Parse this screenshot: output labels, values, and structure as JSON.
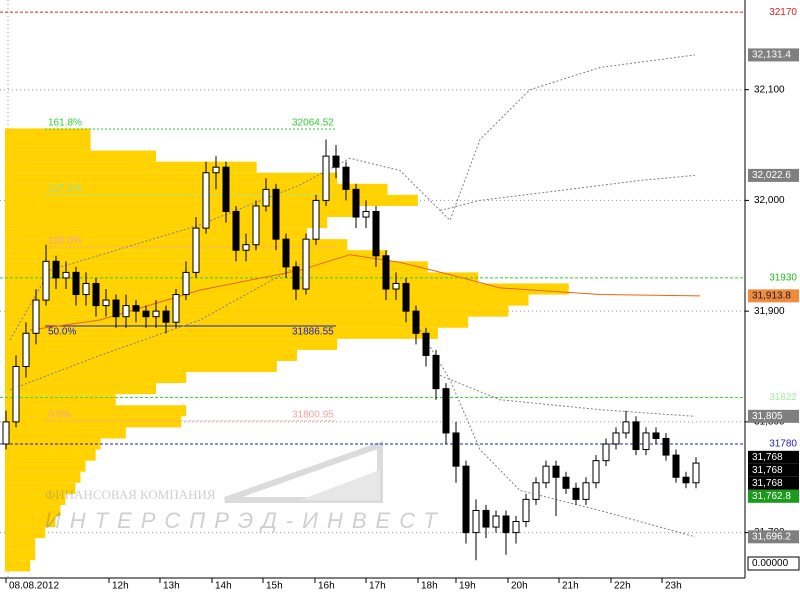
{
  "chart_data": {
    "type": "candlestick",
    "xlim": [
      -0.6,
      73.9
    ],
    "xticks": [
      {
        "value": 0,
        "label": "08.08.2012"
      },
      {
        "value": 10.3,
        "label": "12h"
      },
      {
        "value": 15.4,
        "label": "13h"
      },
      {
        "value": 20.6,
        "label": "14h"
      },
      {
        "value": 25.7,
        "label": "15h"
      },
      {
        "value": 30.9,
        "label": "16h"
      },
      {
        "value": 36,
        "label": "17h"
      },
      {
        "value": 41.2,
        "label": "18h"
      },
      {
        "value": 45,
        "label": "19h"
      },
      {
        "value": 50.2,
        "label": "20h"
      },
      {
        "value": 55.3,
        "label": "21h"
      },
      {
        "value": 60.5,
        "label": "22h"
      },
      {
        "value": 65.6,
        "label": "23h"
      }
    ],
    "ylim": [
      31659,
      32181
    ],
    "yticks": [
      {
        "value": 32100,
        "label": "32,100"
      },
      {
        "value": 32000,
        "label": "32,000"
      },
      {
        "value": 31900,
        "label": "31,900"
      },
      {
        "value": 31800,
        "label": "31,800"
      },
      {
        "value": 31700,
        "label": "31,700"
      }
    ],
    "grid": true,
    "up_color": "#ffffff",
    "down_color": "#000000",
    "open": [
      31780,
      31800,
      31850,
      31880,
      31910,
      31945,
      31930,
      31935,
      31915,
      31925,
      31905,
      31910,
      31895,
      31905,
      31900,
      31895,
      31900,
      31890,
      31915,
      31935,
      31975,
      32025,
      32030,
      31990,
      31955,
      31960,
      31995,
      32010,
      31965,
      31940,
      31920,
      31965,
      32000,
      32040,
      32030,
      32010,
      31985,
      31990,
      31950,
      31920,
      31925,
      31900,
      31880,
      31860,
      31830,
      31790,
      31760,
      31700,
      31720,
      31705,
      31715,
      31700,
      31710,
      31730,
      31745,
      31760,
      31750,
      31740,
      31730,
      31745,
      31765,
      31780,
      31790,
      31800,
      31775,
      31790,
      31785,
      31770,
      31750,
      31745
    ],
    "high": [
      31810,
      31860,
      31890,
      31920,
      31960,
      31950,
      31945,
      31940,
      31935,
      31930,
      31920,
      31915,
      31915,
      31910,
      31905,
      31910,
      31905,
      31920,
      31945,
      31985,
      32035,
      32040,
      32035,
      31995,
      31970,
      32000,
      32020,
      32015,
      31970,
      31945,
      31970,
      32005,
      32055,
      32050,
      32035,
      32015,
      32000,
      31995,
      31955,
      31935,
      31930,
      31905,
      31885,
      31865,
      31835,
      31800,
      31765,
      31730,
      31725,
      31720,
      31720,
      31715,
      31735,
      31750,
      31765,
      31765,
      31755,
      31745,
      31750,
      31770,
      31785,
      31795,
      31810,
      31805,
      31795,
      31795,
      31790,
      31775,
      31755,
      31768
    ],
    "low": [
      31775,
      31795,
      31840,
      31870,
      31905,
      31920,
      31920,
      31905,
      31905,
      31895,
      31895,
      31885,
      31885,
      31890,
      31885,
      31885,
      31880,
      31885,
      31910,
      31930,
      31970,
      32010,
      31980,
      31945,
      31945,
      31955,
      31990,
      31955,
      31930,
      31910,
      31915,
      31960,
      31995,
      32020,
      32000,
      31975,
      31975,
      31940,
      31910,
      31910,
      31890,
      31870,
      31850,
      31820,
      31780,
      31745,
      31690,
      31675,
      31695,
      31700,
      31680,
      31690,
      31705,
      31725,
      31740,
      31715,
      31735,
      31725,
      31725,
      31740,
      31760,
      31775,
      31785,
      31770,
      31770,
      31780,
      31765,
      31745,
      31740,
      31740
    ],
    "close": [
      31800,
      31850,
      31880,
      31910,
      31945,
      31930,
      31935,
      31915,
      31925,
      31905,
      31910,
      31895,
      31905,
      31900,
      31895,
      31900,
      31890,
      31915,
      31935,
      31975,
      32025,
      32030,
      31990,
      31955,
      31960,
      31995,
      32010,
      31965,
      31940,
      31920,
      31965,
      32000,
      32040,
      32030,
      32010,
      31985,
      31990,
      31950,
      31920,
      31925,
      31900,
      31880,
      31860,
      31830,
      31790,
      31760,
      31700,
      31720,
      31705,
      31715,
      31700,
      31710,
      31730,
      31745,
      31760,
      31750,
      31740,
      31730,
      31745,
      31765,
      31780,
      31790,
      31800,
      31775,
      31790,
      31785,
      31770,
      31750,
      31745,
      31762.8
    ],
    "lines": [
      {
        "color": "#e8641e",
        "style": "solid",
        "x": [
          2.4,
          9.4,
          19.4,
          29.4,
          34.4,
          39.4,
          44.4,
          49.4,
          59.4,
          69.4
        ],
        "values": [
          31883,
          31892,
          31919,
          31937,
          31951,
          31944,
          31933,
          31921,
          31915,
          31913.8
        ]
      },
      {
        "color": "#808080",
        "style": "dotted",
        "x": [
          0.4,
          4.4,
          19.4,
          29.4,
          34.4,
          39.4,
          44.4,
          47.4,
          52.4,
          59.4,
          68.9
        ],
        "values": [
          31874,
          31937,
          31978,
          32014,
          32038,
          32027,
          31982,
          32055,
          32100,
          32120,
          32131.4
        ]
      },
      {
        "color": "#808080",
        "style": "dotted",
        "x": [
          43.4,
          47.4,
          55.4,
          63.4,
          68.9
        ],
        "values": [
          31991,
          32000,
          32009,
          32018,
          32022.6
        ]
      },
      {
        "color": "#808080",
        "style": "dotted",
        "x": [
          0.4,
          9.4,
          19.4,
          29.4
        ],
        "values": [
          31829,
          31860,
          31892,
          31942
        ]
      },
      {
        "color": "#808080",
        "style": "dotted",
        "x": [
          43.4,
          49.4,
          59.4,
          68.9
        ],
        "values": [
          31842,
          31820,
          31811,
          31805
        ]
      },
      {
        "color": "#808080",
        "style": "dotted",
        "x": [
          41.4,
          44.4,
          47.4,
          51.4,
          59.4,
          68.9
        ],
        "values": [
          31883,
          31838,
          31775,
          31738,
          31720,
          31696.2
        ]
      }
    ],
    "profile": {
      "color": "#ffd200",
      "xlim": [
        0,
        740
      ],
      "prices": [
        32060,
        32050,
        32040,
        32030,
        32020,
        32010,
        32000,
        31990,
        31980,
        31970,
        31960,
        31950,
        31940,
        31930,
        31920,
        31910,
        31900,
        31890,
        31880,
        31870,
        31860,
        31850,
        31840,
        31830,
        31820,
        31810,
        31800,
        31790,
        31780,
        31770,
        31760,
        31750,
        31740,
        31730,
        31720,
        31710,
        31700,
        31690,
        31680,
        31670
      ],
      "volumes": [
        85,
        85,
        150,
        250,
        330,
        380,
        410,
        350,
        320,
        300,
        340,
        380,
        420,
        470,
        560,
        520,
        500,
        460,
        430,
        330,
        290,
        270,
        180,
        150,
        110,
        180,
        175,
        120,
        95,
        90,
        80,
        75,
        70,
        60,
        55,
        50,
        40,
        30,
        30,
        25
      ]
    },
    "levels": [
      {
        "value": 32170,
        "color": "#e02020"
      },
      {
        "value": 31930,
        "color": "#33cc33"
      },
      {
        "value": 31822,
        "color": "#33dd33"
      },
      {
        "value": 31780,
        "color": "#2020c0"
      }
    ],
    "fibonacci": [
      {
        "label": "161.8%",
        "value": 32064.52,
        "color": "#33cc33",
        "show_price": true
      },
      {
        "label": "127.2%",
        "value": 32005,
        "color": "#99e0a0",
        "show_price": false
      },
      {
        "label": "100.0%",
        "value": 31958.14,
        "color": "#f4a0a0",
        "show_price": false
      },
      {
        "label": "50.0%",
        "value": 31886.55,
        "color": "#2020c0",
        "show_price": true
      },
      {
        "label": "0.0%",
        "value": 31800.95,
        "color": "#f4a0a0",
        "show_price": true
      }
    ],
    "price_markers": [
      {
        "value": 32170,
        "fg": "#e02020",
        "bg": null
      },
      {
        "value": 32131.4,
        "label": "32,131.4",
        "fg": "#ffffff",
        "bg": "#7f7f7f"
      },
      {
        "value": 32022.6,
        "label": "32,022.6",
        "fg": "#ffffff",
        "bg": "#7f7f7f"
      },
      {
        "value": 31930,
        "fg": "#22bb22",
        "bg": null
      },
      {
        "value": 31913.8,
        "label": "31,913.8",
        "fg": "#202020",
        "bg": "#f08a3c"
      },
      {
        "value": 31822,
        "fg": "#a0f0a0",
        "bg": null
      },
      {
        "value": 31805,
        "label": "31,805",
        "fg": "#ffffff",
        "bg": "#7f7f7f"
      },
      {
        "value": 31780,
        "fg": "#2020c0",
        "bg": null
      },
      {
        "value": 31768,
        "label": "31,768",
        "fg": "#ffffff",
        "bg": "#000000"
      },
      {
        "value": 31768,
        "label": "31,768",
        "fg": "#ffffff",
        "bg": "#000000"
      },
      {
        "value": 31768,
        "label": "31,768",
        "fg": "#ffffff",
        "bg": "#000000"
      },
      {
        "value": 31762.8,
        "label": "31,762.8",
        "fg": "#ffffff",
        "bg": "#1a9a1a"
      },
      {
        "value": 31696.2,
        "label": "31,696.2",
        "fg": "#ffffff",
        "bg": "#7f7f7f"
      }
    ],
    "indicator_value": {
      "value": 0,
      "label": "0.00000"
    },
    "watermark": {
      "line1": "ФИНАНСОВАЯ КОМПАНИЯ",
      "line2": "ИНТЕРСПРЭД-ИНВЕСТ"
    }
  }
}
